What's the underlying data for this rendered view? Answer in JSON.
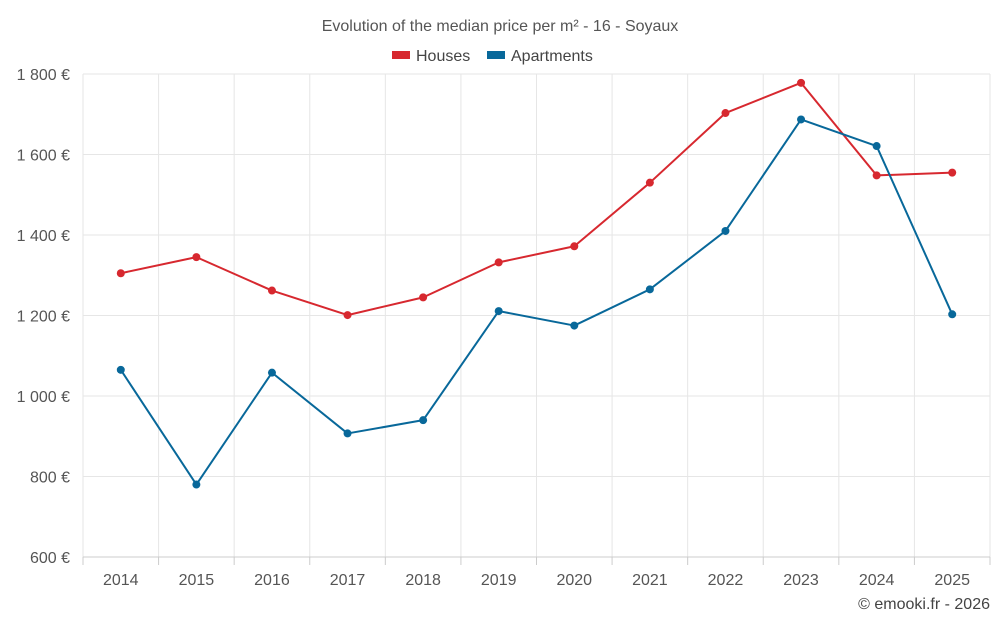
{
  "chart_data": {
    "type": "line",
    "title": "Evolution of the median price per m² - 16 - Soyaux",
    "categories": [
      "2014",
      "2015",
      "2016",
      "2017",
      "2018",
      "2019",
      "2020",
      "2021",
      "2022",
      "2023",
      "2024",
      "2025"
    ],
    "series": [
      {
        "name": "Houses",
        "color": "#d7282f",
        "values": [
          1305,
          1345,
          1262,
          1201,
          1245,
          1332,
          1372,
          1530,
          1703,
          1778,
          1548,
          1555
        ]
      },
      {
        "name": "Apartments",
        "color": "#08689a",
        "values": [
          1065,
          780,
          1058,
          907,
          940,
          1211,
          1175,
          1265,
          1410,
          1687,
          1621,
          1203
        ]
      }
    ],
    "ylim": [
      600,
      1800
    ],
    "yticks": [
      600,
      800,
      1000,
      1200,
      1400,
      1600,
      1800
    ],
    "ytick_labels": [
      "600 €",
      "800 €",
      "1 000 €",
      "1 200 €",
      "1 400 €",
      "1 600 €",
      "1 800 €"
    ],
    "xlabel": "",
    "ylabel": "",
    "grid": true,
    "legend_position": "top-center"
  },
  "credit": "© emooki.fr - 2026"
}
